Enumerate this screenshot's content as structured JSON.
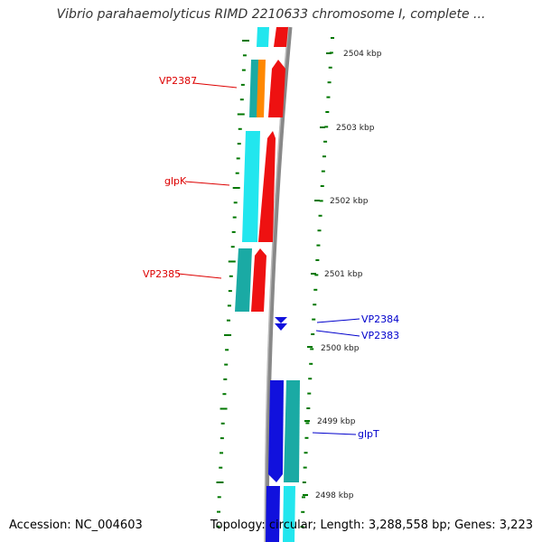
{
  "title": "Vibrio parahaemolyticus RIMD 2210633 chromosome I, complete ...",
  "footer": {
    "accession": "Accession: NC_004603",
    "summary": "Topology: circular; Length: 3,288,558 bp; Genes: 3,223"
  },
  "colors": {
    "minus_strand_label": "#dd0000",
    "plus_strand_label": "#0000cc",
    "backbone": "#888888",
    "tick": "#007700",
    "feature_cyan": "#22e6ee",
    "feature_teal": "#1aaaa4",
    "feature_red": "#ee1111",
    "feature_orange": "#ff8800",
    "feature_blue": "#1111dd"
  },
  "ticks": [
    {
      "label": "2504 kbp"
    },
    {
      "label": "2503 kbp"
    },
    {
      "label": "2502 kbp"
    },
    {
      "label": "2501 kbp"
    },
    {
      "label": "2500 kbp"
    },
    {
      "label": "2499 kbp"
    },
    {
      "label": "2498 kbp"
    }
  ],
  "gene_labels": [
    {
      "text": "VP2387",
      "strand": "minus"
    },
    {
      "text": "glpK",
      "strand": "minus"
    },
    {
      "text": "VP2385",
      "strand": "minus"
    },
    {
      "text": "VP2384",
      "strand": "plus"
    },
    {
      "text": "VP2383",
      "strand": "plus"
    },
    {
      "text": "glpT",
      "strand": "plus"
    }
  ]
}
